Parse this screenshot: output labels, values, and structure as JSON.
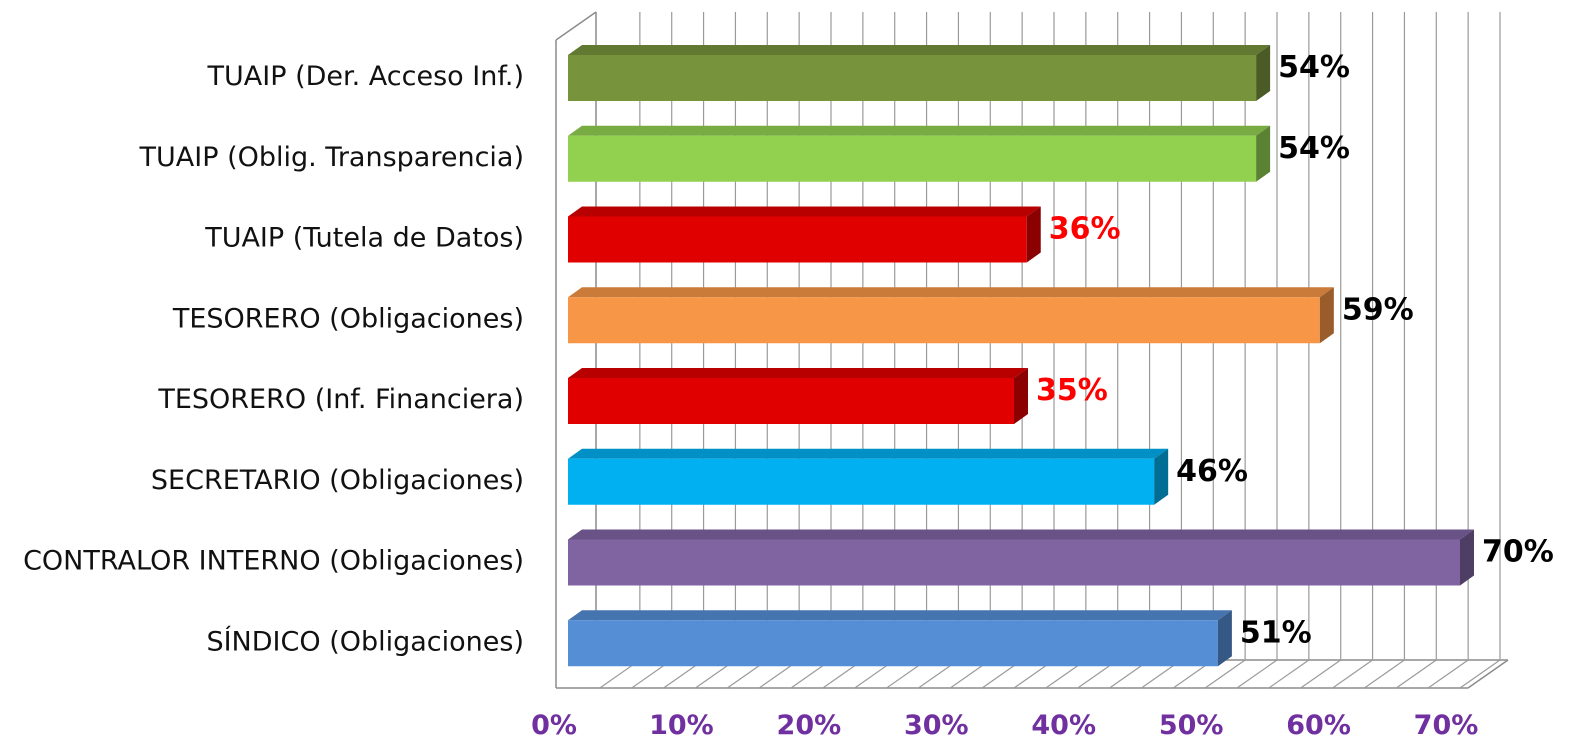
{
  "chart_data": {
    "type": "bar",
    "orientation": "horizontal",
    "style": "3d",
    "categories": [
      "TUAIP (Der. Acceso Inf.)",
      "TUAIP (Oblig. Transparencia)",
      "TUAIP (Tutela de Datos)",
      "TESORERO (Obligaciones)",
      "TESORERO (Inf. Financiera)",
      "SECRETARIO (Obligaciones)",
      "CONTRALOR INTERNO (Obligaciones)",
      "SÍNDICO (Obligaciones)"
    ],
    "values": [
      54,
      54,
      36,
      59,
      35,
      46,
      70,
      51
    ],
    "data_labels": [
      "54%",
      "54%",
      "36%",
      "59%",
      "35%",
      "46%",
      "70%",
      "51%"
    ],
    "bar_colors": [
      "#77933C",
      "#92D050",
      "#E00000",
      "#F79646",
      "#E00000",
      "#00B0F0",
      "#8064A2",
      "#558ED5"
    ],
    "label_colors": [
      "#000000",
      "#000000",
      "#FF0000",
      "#000000",
      "#FF0000",
      "#000000",
      "#000000",
      "#000000"
    ],
    "x_ticks": [
      "0%",
      "10%",
      "20%",
      "30%",
      "40%",
      "50%",
      "60%",
      "70%"
    ],
    "xlim": [
      0,
      70
    ],
    "tick_color": "#7030A0",
    "grid": true,
    "legend": "none",
    "title": "",
    "xlabel": "",
    "ylabel": ""
  }
}
